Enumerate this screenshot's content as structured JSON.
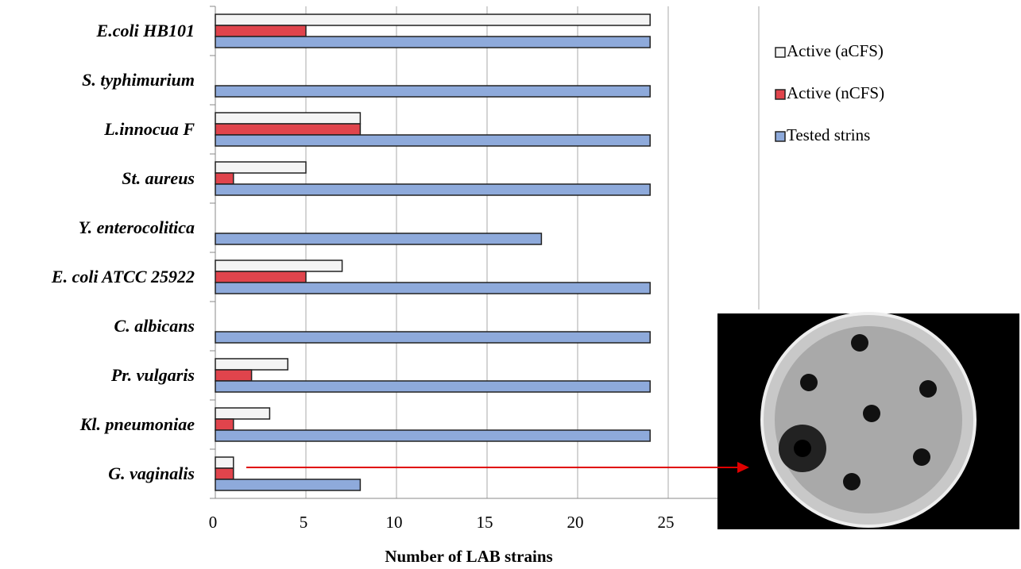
{
  "chart_data": {
    "type": "bar",
    "orientation": "horizontal",
    "x_label": "Number of LAB strains",
    "categories": [
      "E.coli HB101",
      "S. typhimurium",
      "L.innocua F",
      "St. aureus",
      "Y. enterocolitica",
      "E. coli ATCC 25922",
      "C. albicans",
      "Pr. vulgaris",
      "Kl. pneumoniae",
      "G. vaginalis"
    ],
    "series": [
      {
        "name": "Active (aCFS)",
        "color": "#f4f4f4",
        "values": [
          24,
          0,
          8,
          5,
          0,
          7,
          0,
          4,
          3,
          1
        ]
      },
      {
        "name": "Active (nCFS)",
        "color": "#e0444c",
        "values": [
          5,
          0,
          8,
          1,
          0,
          5,
          0,
          2,
          1,
          1
        ]
      },
      {
        "name": "Tested strins",
        "color": "#8eaadb",
        "values": [
          24,
          24,
          24,
          24,
          18,
          24,
          24,
          24,
          24,
          8
        ]
      }
    ],
    "xlim": [
      0,
      30
    ],
    "xticks": [
      0,
      5,
      10,
      15,
      20,
      25
    ],
    "grid": true
  }
}
